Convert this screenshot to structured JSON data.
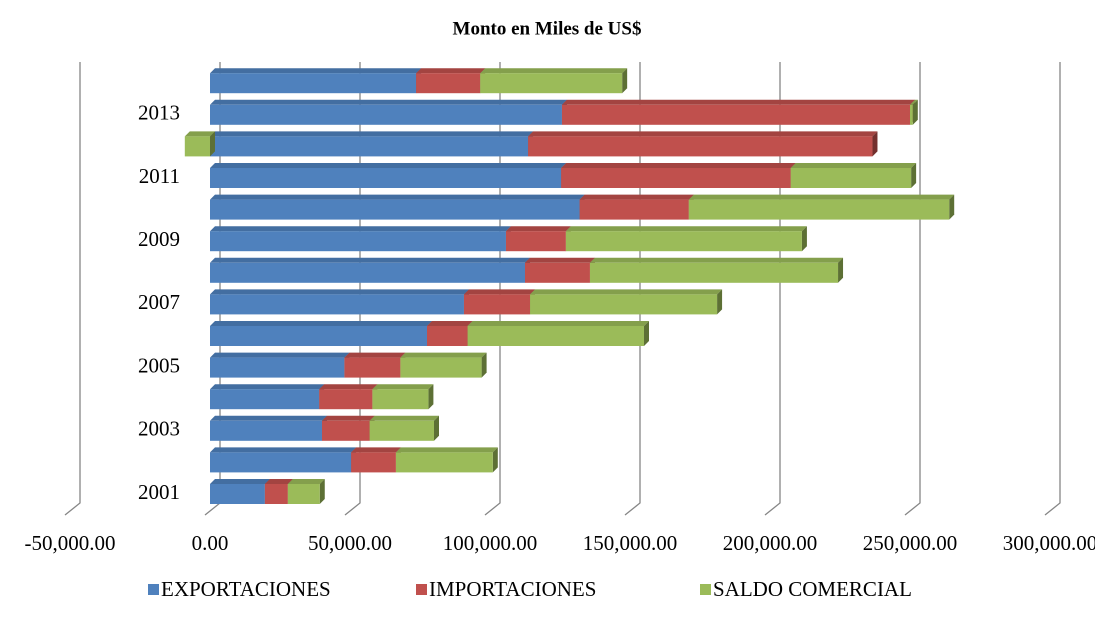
{
  "chart_data": {
    "type": "bar",
    "orientation": "horizontal",
    "stacked": true,
    "title": "Monto en Miles de US$",
    "categories": [
      "2001",
      null,
      "2003",
      null,
      "2005",
      null,
      "2007",
      null,
      "2009",
      null,
      "2011",
      null,
      "2013",
      null
    ],
    "series": [
      {
        "name": "EXPORTACIONES",
        "color": "#4f81bd",
        "values": [
          19600,
          50400,
          40000,
          39000,
          48000,
          77500,
          90700,
          112500,
          105700,
          132000,
          125400,
          113600,
          125700,
          73600
        ]
      },
      {
        "name": "IMPORTACIONES",
        "color": "#c0504d",
        "values": [
          8200,
          16000,
          17000,
          19000,
          20000,
          14500,
          23600,
          23200,
          21400,
          39000,
          82000,
          123000,
          124300,
          22900
        ]
      },
      {
        "name": "SALDO COMERCIAL",
        "color": "#9bbb59",
        "values": [
          11400,
          34600,
          23000,
          20000,
          29000,
          63000,
          66800,
          88600,
          84300,
          93000,
          43000,
          -9000,
          1000,
          50700
        ]
      }
    ],
    "xlim": [
      -50000,
      300000
    ],
    "xticks": [
      {
        "value": -50000,
        "label": "-50,000.00"
      },
      {
        "value": 0,
        "label": "0.00"
      },
      {
        "value": 50000,
        "label": "50,000.00"
      },
      {
        "value": 100000,
        "label": "100,000.00"
      },
      {
        "value": 150000,
        "label": "150,000.00"
      },
      {
        "value": 200000,
        "label": "200,000.00"
      },
      {
        "value": 250000,
        "label": "250,000.00"
      },
      {
        "value": 300000,
        "label": "300,000.00"
      }
    ],
    "grid": true,
    "legend": "bottom"
  }
}
